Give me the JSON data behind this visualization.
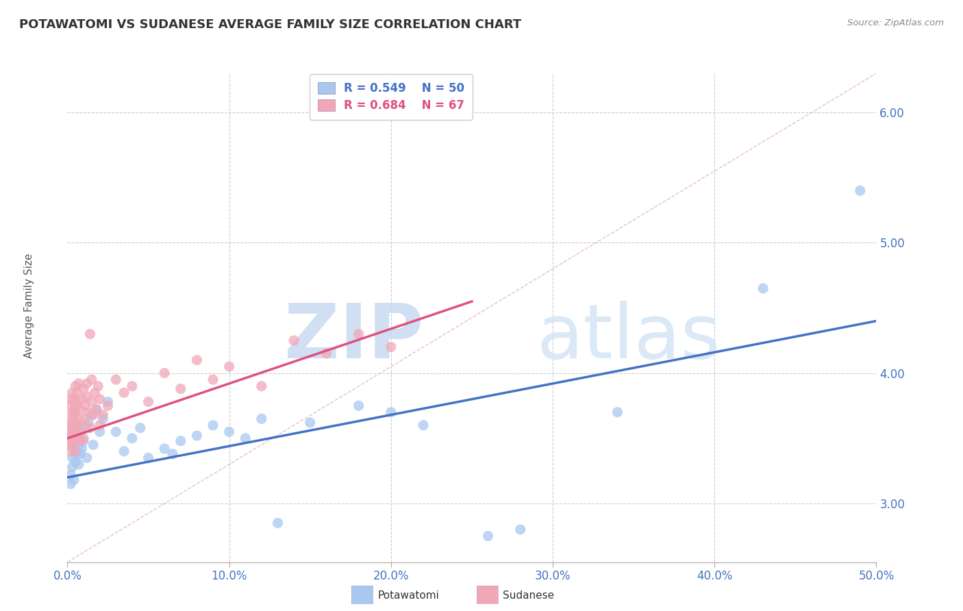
{
  "title": "POTAWATOMI VS SUDANESE AVERAGE FAMILY SIZE CORRELATION CHART",
  "source": "Source: ZipAtlas.com",
  "ylabel": "Average Family Size",
  "xlim": [
    0.0,
    0.5
  ],
  "ylim": [
    2.55,
    6.3
  ],
  "yticks": [
    3.0,
    4.0,
    5.0,
    6.0
  ],
  "xticks": [
    0.0,
    0.1,
    0.2,
    0.3,
    0.4,
    0.5
  ],
  "xticklabels": [
    "0.0%",
    "10.0%",
    "20.0%",
    "30.0%",
    "40.0%",
    "50.0%"
  ],
  "background_color": "#ffffff",
  "grid_color": "#cccccc",
  "potawatomi_color": "#a8c8f0",
  "sudanese_color": "#f0a8b8",
  "potawatomi_line_color": "#4472c4",
  "sudanese_line_color": "#e05080",
  "legend_R_potawatomi": "R = 0.549",
  "legend_N_potawatomi": "N = 50",
  "legend_R_sudanese": "R = 0.684",
  "legend_N_sudanese": "N = 67",
  "title_color": "#333333",
  "tick_color": "#4472c4",
  "pot_line_x0": 0.0,
  "pot_line_y0": 3.2,
  "pot_line_x1": 0.5,
  "pot_line_y1": 4.4,
  "sud_line_x0": 0.0,
  "sud_line_y0": 3.5,
  "sud_line_x1": 0.25,
  "sud_line_y1": 4.55,
  "potawatomi_points": [
    [
      0.001,
      3.48
    ],
    [
      0.002,
      3.22
    ],
    [
      0.002,
      3.15
    ],
    [
      0.003,
      3.35
    ],
    [
      0.003,
      3.28
    ],
    [
      0.004,
      3.42
    ],
    [
      0.004,
      3.18
    ],
    [
      0.005,
      3.5
    ],
    [
      0.005,
      3.32
    ],
    [
      0.005,
      3.6
    ],
    [
      0.006,
      3.38
    ],
    [
      0.006,
      3.52
    ],
    [
      0.007,
      3.3
    ],
    [
      0.007,
      3.45
    ],
    [
      0.008,
      3.38
    ],
    [
      0.008,
      3.55
    ],
    [
      0.009,
      3.42
    ],
    [
      0.01,
      3.48
    ],
    [
      0.011,
      3.58
    ],
    [
      0.012,
      3.35
    ],
    [
      0.013,
      3.62
    ],
    [
      0.015,
      3.68
    ],
    [
      0.016,
      3.45
    ],
    [
      0.018,
      3.72
    ],
    [
      0.02,
      3.55
    ],
    [
      0.022,
      3.65
    ],
    [
      0.025,
      3.78
    ],
    [
      0.03,
      3.55
    ],
    [
      0.035,
      3.4
    ],
    [
      0.04,
      3.5
    ],
    [
      0.045,
      3.58
    ],
    [
      0.05,
      3.35
    ],
    [
      0.06,
      3.42
    ],
    [
      0.065,
      3.38
    ],
    [
      0.07,
      3.48
    ],
    [
      0.08,
      3.52
    ],
    [
      0.09,
      3.6
    ],
    [
      0.1,
      3.55
    ],
    [
      0.11,
      3.5
    ],
    [
      0.12,
      3.65
    ],
    [
      0.13,
      2.85
    ],
    [
      0.15,
      3.62
    ],
    [
      0.18,
      3.75
    ],
    [
      0.2,
      3.7
    ],
    [
      0.22,
      3.6
    ],
    [
      0.26,
      2.75
    ],
    [
      0.28,
      2.8
    ],
    [
      0.34,
      3.7
    ],
    [
      0.43,
      4.65
    ],
    [
      0.49,
      5.4
    ]
  ],
  "sudanese_points": [
    [
      0.001,
      3.55
    ],
    [
      0.001,
      3.45
    ],
    [
      0.001,
      3.6
    ],
    [
      0.002,
      3.5
    ],
    [
      0.002,
      3.65
    ],
    [
      0.002,
      3.4
    ],
    [
      0.002,
      3.75
    ],
    [
      0.002,
      3.8
    ],
    [
      0.003,
      3.55
    ],
    [
      0.003,
      3.7
    ],
    [
      0.003,
      3.45
    ],
    [
      0.003,
      3.85
    ],
    [
      0.003,
      3.6
    ],
    [
      0.004,
      3.7
    ],
    [
      0.004,
      3.55
    ],
    [
      0.004,
      3.8
    ],
    [
      0.004,
      3.48
    ],
    [
      0.004,
      3.65
    ],
    [
      0.005,
      3.75
    ],
    [
      0.005,
      3.55
    ],
    [
      0.005,
      3.9
    ],
    [
      0.005,
      3.4
    ],
    [
      0.005,
      3.7
    ],
    [
      0.006,
      3.6
    ],
    [
      0.006,
      3.85
    ],
    [
      0.006,
      3.5
    ],
    [
      0.006,
      3.78
    ],
    [
      0.007,
      3.65
    ],
    [
      0.007,
      3.92
    ],
    [
      0.007,
      3.55
    ],
    [
      0.008,
      3.72
    ],
    [
      0.008,
      3.48
    ],
    [
      0.009,
      3.8
    ],
    [
      0.009,
      3.6
    ],
    [
      0.01,
      3.88
    ],
    [
      0.01,
      3.5
    ],
    [
      0.011,
      3.75
    ],
    [
      0.011,
      3.65
    ],
    [
      0.012,
      3.82
    ],
    [
      0.012,
      3.92
    ],
    [
      0.013,
      3.7
    ],
    [
      0.014,
      3.58
    ],
    [
      0.014,
      4.3
    ],
    [
      0.015,
      3.78
    ],
    [
      0.015,
      3.95
    ],
    [
      0.016,
      3.68
    ],
    [
      0.017,
      3.85
    ],
    [
      0.018,
      3.72
    ],
    [
      0.019,
      3.9
    ],
    [
      0.02,
      3.8
    ],
    [
      0.02,
      3.6
    ],
    [
      0.022,
      3.68
    ],
    [
      0.025,
      3.75
    ],
    [
      0.03,
      3.95
    ],
    [
      0.035,
      3.85
    ],
    [
      0.04,
      3.9
    ],
    [
      0.05,
      3.78
    ],
    [
      0.06,
      4.0
    ],
    [
      0.07,
      3.88
    ],
    [
      0.08,
      4.1
    ],
    [
      0.09,
      3.95
    ],
    [
      0.1,
      4.05
    ],
    [
      0.12,
      3.9
    ],
    [
      0.14,
      4.25
    ],
    [
      0.16,
      4.15
    ],
    [
      0.18,
      4.3
    ],
    [
      0.2,
      4.2
    ]
  ]
}
